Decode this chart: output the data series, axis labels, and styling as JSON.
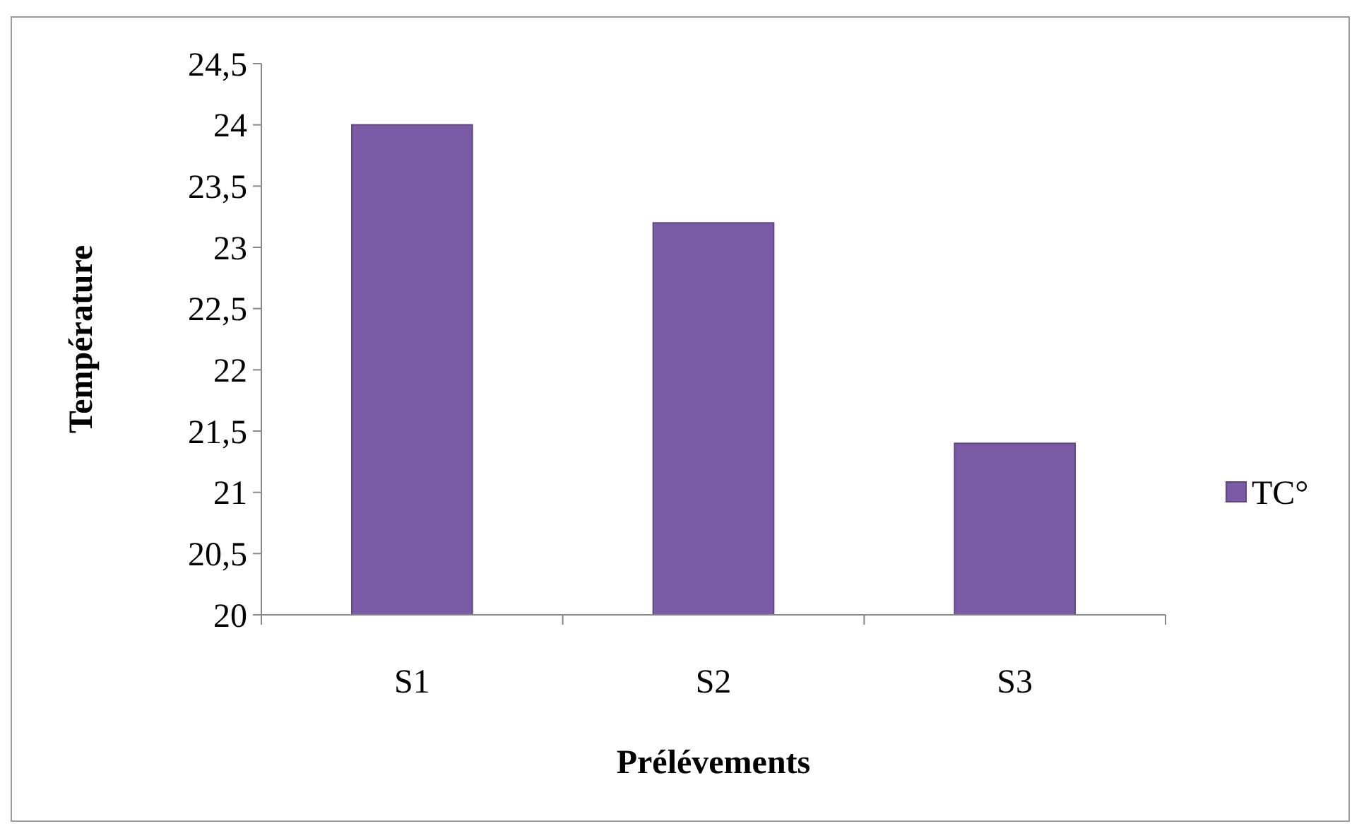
{
  "chart_data": {
    "type": "bar",
    "xlabel": "Prélévements",
    "ylabel": "Température",
    "categories": [
      "S1",
      "S2",
      "S3"
    ],
    "series": [
      {
        "name": "TC°",
        "color": "#7b5aa6",
        "values": [
          24,
          23.2,
          21.4
        ]
      }
    ],
    "ylim": [
      20,
      24.5
    ],
    "yticks": [
      {
        "value": 20,
        "label": "20"
      },
      {
        "value": 20.5,
        "label": "20,5"
      },
      {
        "value": 21,
        "label": "21"
      },
      {
        "value": 21.5,
        "label": "21,5"
      },
      {
        "value": 22,
        "label": "22"
      },
      {
        "value": 22.5,
        "label": "22,5"
      },
      {
        "value": 23,
        "label": "23"
      },
      {
        "value": 23.5,
        "label": "23,5"
      },
      {
        "value": 24,
        "label": "24"
      },
      {
        "value": 24.5,
        "label": "24,5"
      }
    ],
    "grid": false,
    "legend": "right"
  }
}
